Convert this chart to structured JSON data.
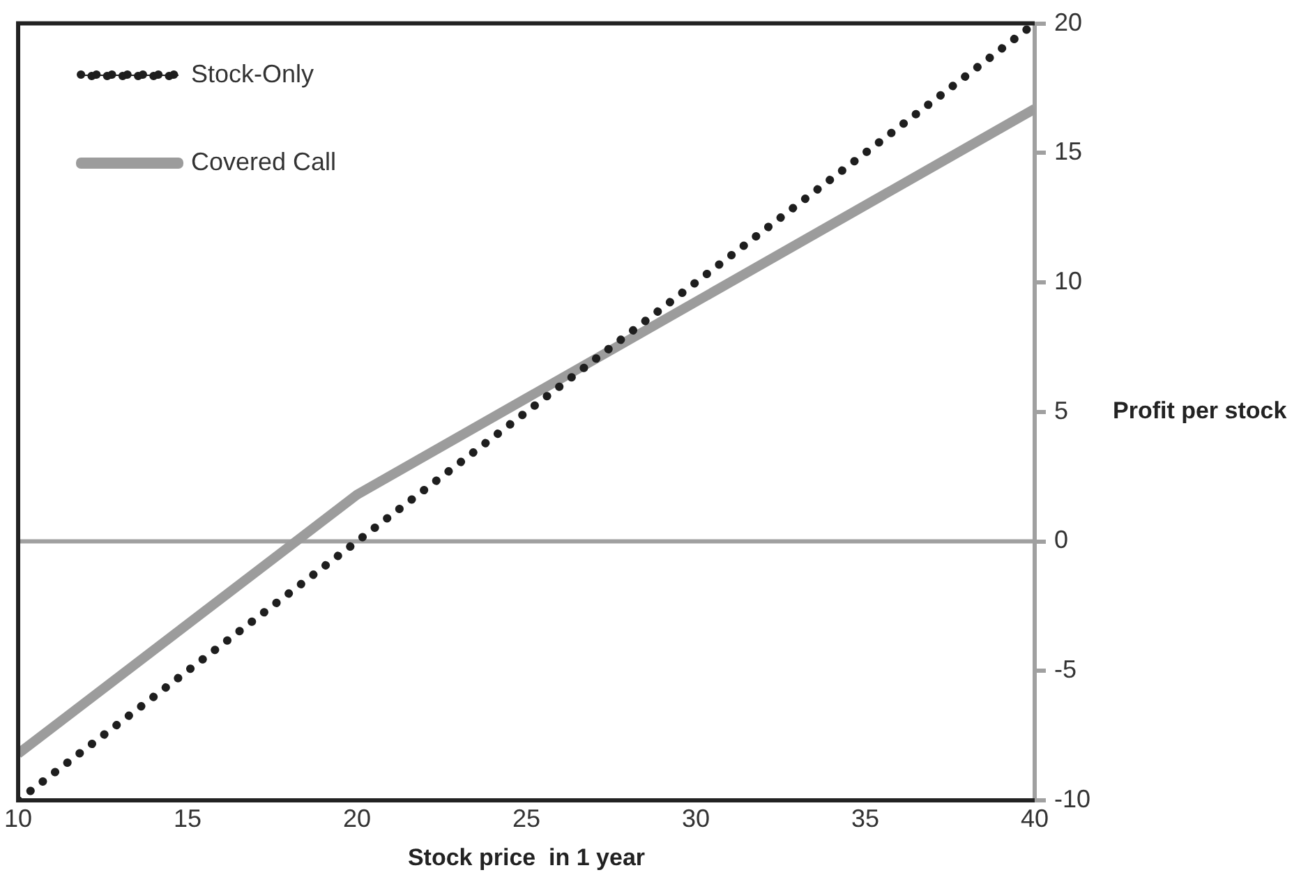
{
  "chart_data": {
    "type": "line",
    "xlabel": "Stock price  in 1 year",
    "ylabel": "Profit per stock",
    "xlim": [
      10,
      40
    ],
    "xticks": [
      10,
      15,
      20,
      25,
      30,
      35,
      40
    ],
    "ylim": [
      -10,
      20
    ],
    "yticks": [
      -10,
      -5,
      0,
      5,
      10,
      15,
      20
    ],
    "grid": false,
    "legend": "top left",
    "marker": "none",
    "ref_lines": [
      {
        "axis": "y",
        "value": 0,
        "color": "#a0a0a0"
      }
    ],
    "series": [
      {
        "name": "Stock-Only",
        "color": "#1e1e1e",
        "line_style": "dotted",
        "x": [
          10,
          40
        ],
        "values": [
          -10,
          20
        ]
      },
      {
        "name": "Covered Call",
        "color": "#9c9c9c",
        "line_style": "solid",
        "x": [
          10,
          20,
          40
        ],
        "values": [
          -8.2,
          1.8,
          16.7
        ]
      }
    ]
  }
}
